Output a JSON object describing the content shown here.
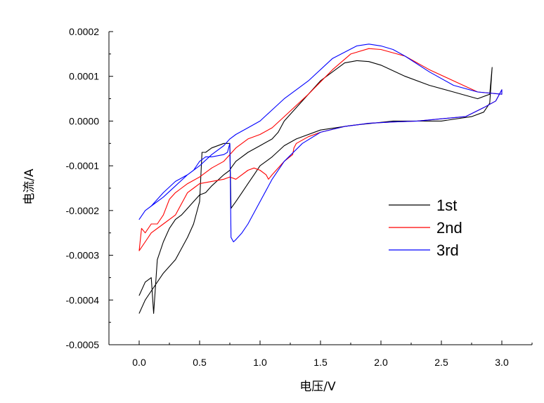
{
  "chart_data": {
    "type": "line",
    "title": "",
    "xlabel": "电压/V",
    "ylabel": "电流/A",
    "xlim": [
      -0.25,
      3.25
    ],
    "ylim": [
      -0.0005,
      0.0002
    ],
    "grid": false,
    "legend_position": "right",
    "x_ticks": [
      "0.0",
      "0.5",
      "1.0",
      "1.5",
      "2.0",
      "2.5",
      "3.0"
    ],
    "y_ticks": [
      "-0.0005",
      "-0.0004",
      "-0.0003",
      "-0.0002",
      "-0.0001",
      "0.0000",
      "0.0001",
      "0.0002"
    ],
    "series": [
      {
        "name": "1st",
        "color": "#000000",
        "x": [
          0.0,
          0.05,
          0.1,
          0.12,
          0.15,
          0.2,
          0.25,
          0.3,
          0.35,
          0.4,
          0.45,
          0.5,
          0.55,
          0.6,
          0.7,
          0.75,
          0.76,
          0.8,
          0.9,
          1.0,
          1.1,
          1.15,
          1.2,
          1.3,
          1.5,
          1.7,
          1.8,
          1.9,
          2.0,
          2.2,
          2.4,
          2.6,
          2.8,
          2.9,
          2.92,
          2.9,
          2.85,
          2.75,
          2.5,
          2.1,
          1.75,
          1.5,
          1.3,
          1.2,
          1.1,
          1.05,
          1.0,
          0.95,
          0.9,
          0.85,
          0.8,
          0.76,
          0.75,
          0.7,
          0.6,
          0.55,
          0.52,
          0.5,
          0.45,
          0.4,
          0.3,
          0.2,
          0.1,
          0.05,
          0.0
        ],
        "y": [
          -0.00039,
          -0.00036,
          -0.00035,
          -0.00043,
          -0.00031,
          -0.00027,
          -0.00024,
          -0.00022,
          -0.00021,
          -0.000195,
          -0.00018,
          -0.000165,
          -0.00016,
          -0.000145,
          -0.00012,
          -0.00011,
          -0.000105,
          -9e-05,
          -7e-05,
          -5.5e-05,
          -4e-05,
          -2.5e-05,
          0.0,
          3e-05,
          9e-05,
          0.00013,
          0.000135,
          0.000133,
          0.000125,
          0.0001,
          8e-05,
          6.5e-05,
          5e-05,
          6e-05,
          0.00012,
          4e-05,
          2e-05,
          1e-05,
          0.0,
          0.0,
          -1e-05,
          -2e-05,
          -4e-05,
          -5.5e-05,
          -8e-05,
          -9e-05,
          -0.0001,
          -0.00012,
          -0.00014,
          -0.00016,
          -0.00018,
          -0.000195,
          -5e-05,
          -5e-05,
          -6e-05,
          -7e-05,
          -7e-05,
          -0.00018,
          -0.00023,
          -0.00026,
          -0.00031,
          -0.00034,
          -0.00038,
          -0.0004,
          -0.00043
        ]
      },
      {
        "name": "2nd",
        "color": "#ff0000",
        "x": [
          0.0,
          0.02,
          0.05,
          0.1,
          0.15,
          0.2,
          0.25,
          0.3,
          0.4,
          0.5,
          0.6,
          0.7,
          0.8,
          0.9,
          1.0,
          1.1,
          1.2,
          1.4,
          1.6,
          1.75,
          1.9,
          2.0,
          2.2,
          2.4,
          2.6,
          2.8,
          3.0,
          3.0,
          2.95,
          2.85,
          2.7,
          2.5,
          2.3,
          2.1,
          1.9,
          1.7,
          1.5,
          1.4,
          1.3,
          1.28,
          1.27,
          1.2,
          1.1,
          1.07,
          1.05,
          1.0,
          0.95,
          0.9,
          0.8,
          0.75,
          0.7,
          0.6,
          0.5,
          0.45,
          0.4,
          0.3,
          0.2,
          0.1,
          0.05,
          0.0
        ],
        "y": [
          -0.00029,
          -0.00024,
          -0.00025,
          -0.00023,
          -0.00023,
          -0.00021,
          -0.000175,
          -0.00016,
          -0.00014,
          -0.000125,
          -0.000105,
          -9e-05,
          -6e-05,
          -4e-05,
          -3e-05,
          -1.5e-05,
          1e-05,
          6e-05,
          0.000115,
          0.00015,
          0.000162,
          0.00016,
          0.000145,
          0.000115,
          9e-05,
          6.5e-05,
          6e-05,
          7e-05,
          4.5e-05,
          3e-05,
          1e-05,
          5e-06,
          0.0,
          -2e-06,
          -5e-06,
          -1.2e-05,
          -2.5e-05,
          -3.5e-05,
          -5e-05,
          -6e-05,
          -7.5e-05,
          -9e-05,
          -0.00012,
          -0.00013,
          -0.00012,
          -0.00011,
          -0.000105,
          -0.00011,
          -0.00013,
          -0.000125,
          -0.00013,
          -0.000135,
          -0.00014,
          -0.00015,
          -0.00016,
          -0.00021,
          -0.00023,
          -0.00025,
          -0.00027,
          -0.00029
        ]
      },
      {
        "name": "3rd",
        "color": "#0000ff",
        "x": [
          0.0,
          0.05,
          0.1,
          0.2,
          0.3,
          0.4,
          0.5,
          0.6,
          0.7,
          0.75,
          0.8,
          0.9,
          1.0,
          1.1,
          1.2,
          1.4,
          1.6,
          1.8,
          1.9,
          2.0,
          2.1,
          2.2,
          2.4,
          2.6,
          2.8,
          3.0,
          3.0,
          2.95,
          2.85,
          2.7,
          2.5,
          2.3,
          2.1,
          1.9,
          1.7,
          1.5,
          1.35,
          1.2,
          1.1,
          1.0,
          0.9,
          0.85,
          0.8,
          0.78,
          0.76,
          0.75,
          0.73,
          0.7,
          0.6,
          0.55,
          0.5,
          0.45,
          0.4,
          0.3,
          0.2,
          0.1,
          0.05,
          0.0
        ],
        "y": [
          -0.00022,
          -0.0002,
          -0.00019,
          -0.00016,
          -0.000135,
          -0.00012,
          -0.0001,
          -7.5e-05,
          -5.5e-05,
          -4e-05,
          -3e-05,
          -1.5e-05,
          0.0,
          2.5e-05,
          5e-05,
          9e-05,
          0.00014,
          0.000168,
          0.000172,
          0.000168,
          0.00016,
          0.000145,
          0.00011,
          8e-05,
          6.5e-05,
          6e-05,
          7e-05,
          4.5e-05,
          3e-05,
          1e-05,
          5e-06,
          0.0,
          -2e-06,
          -5e-06,
          -1.2e-05,
          -2.5e-05,
          -5e-05,
          -9e-05,
          -0.00013,
          -0.00018,
          -0.00023,
          -0.00025,
          -0.000265,
          -0.00027,
          -0.00026,
          -5e-05,
          -7e-05,
          -7.5e-05,
          -8e-05,
          -8e-05,
          -9e-05,
          -0.00011,
          -0.00012,
          -0.000145,
          -0.00017,
          -0.00019,
          -0.0002,
          -0.00022
        ]
      }
    ]
  }
}
